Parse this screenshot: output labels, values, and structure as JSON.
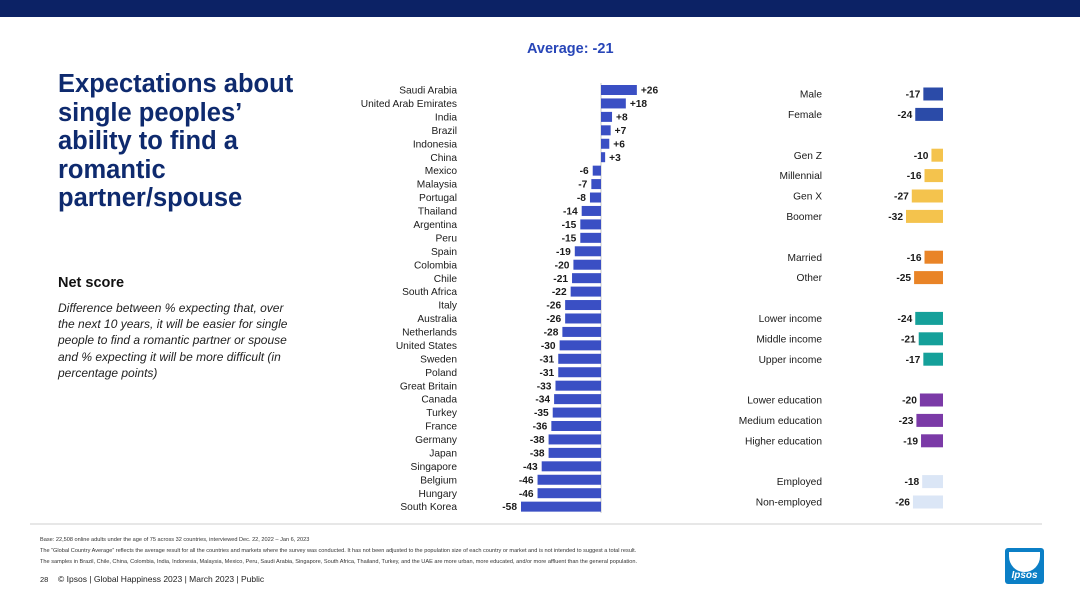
{
  "colors": {
    "top_bar": "#0c2265",
    "title": "#0e2a6e",
    "average": "#2846b8",
    "country_bar": "#3a4fc4",
    "gender": "#2b4ba8",
    "generation": "#f4c34d",
    "marital": "#e98427",
    "income": "#15a09a",
    "education": "#7b3aa7",
    "employment": "#dbe6f6",
    "logo": "#0b7fc6"
  },
  "title": "Expectations about single peoples’ ability to find a romantic partner/spouse",
  "net_score": {
    "heading": "Net score",
    "description": "Difference between % expecting that, over the next 10 years, it will be easier for single people to find a romantic partner or spouse and % expecting it will be more difficult (in percentage points)"
  },
  "chart_data": [
    {
      "type": "bar",
      "orientation": "horizontal",
      "title": "Average: -21",
      "average": -21,
      "xlim": [
        -58,
        26
      ],
      "categories": [
        "Saudi Arabia",
        "United Arab Emirates",
        "India",
        "Brazil",
        "Indonesia",
        "China",
        "Mexico",
        "Malaysia",
        "Portugal",
        "Thailand",
        "Argentina",
        "Peru",
        "Spain",
        "Colombia",
        "Chile",
        "South Africa",
        "Italy",
        "Australia",
        "Netherlands",
        "United States",
        "Sweden",
        "Poland",
        "Great Britain",
        "Canada",
        "Turkey",
        "France",
        "Germany",
        "Japan",
        "Singapore",
        "Belgium",
        "Hungary",
        "South Korea"
      ],
      "values": [
        26,
        18,
        8,
        7,
        6,
        3,
        -6,
        -7,
        -8,
        -14,
        -15,
        -15,
        -19,
        -20,
        -21,
        -22,
        -26,
        -26,
        -28,
        -30,
        -31,
        -31,
        -33,
        -34,
        -35,
        -36,
        -38,
        -38,
        -43,
        -46,
        -46,
        -58
      ],
      "labels": [
        "+26",
        "+18",
        "+8",
        "+7",
        "+6",
        "+3",
        "-6",
        "-7",
        "-8",
        "-14",
        "-15",
        "-15",
        "-19",
        "-20",
        "-21",
        "-22",
        "-26",
        "-26",
        "-28",
        "-30",
        "-31",
        "-31",
        "-33",
        "-34",
        "-35",
        "-36",
        "-38",
        "-38",
        "-43",
        "-46",
        "-46",
        "-58"
      ]
    },
    {
      "type": "bar",
      "orientation": "horizontal",
      "groups": [
        {
          "name": "gender",
          "color": "#2b4ba8",
          "items": [
            {
              "label": "Male",
              "value": -17,
              "text": "-17"
            },
            {
              "label": "Female",
              "value": -24,
              "text": "-24"
            }
          ]
        },
        {
          "name": "generation",
          "color": "#f4c34d",
          "items": [
            {
              "label": "Gen Z",
              "value": -10,
              "text": "-10"
            },
            {
              "label": "Millennial",
              "value": -16,
              "text": "-16"
            },
            {
              "label": "Gen X",
              "value": -27,
              "text": "-27"
            },
            {
              "label": "Boomer",
              "value": -32,
              "text": "-32"
            }
          ]
        },
        {
          "name": "marital",
          "color": "#e98427",
          "items": [
            {
              "label": "Married",
              "value": -16,
              "text": "-16"
            },
            {
              "label": "Other",
              "value": -25,
              "text": "-25"
            }
          ]
        },
        {
          "name": "income",
          "color": "#15a09a",
          "items": [
            {
              "label": "Lower income",
              "value": -24,
              "text": "-24"
            },
            {
              "label": "Middle income",
              "value": -21,
              "text": "-21"
            },
            {
              "label": "Upper income",
              "value": -17,
              "text": "-17"
            }
          ]
        },
        {
          "name": "education",
          "color": "#7b3aa7",
          "items": [
            {
              "label": "Lower education",
              "value": -20,
              "text": "-20"
            },
            {
              "label": "Medium education",
              "value": -23,
              "text": "-23"
            },
            {
              "label": "Higher education",
              "value": -19,
              "text": "-19"
            }
          ]
        },
        {
          "name": "employment",
          "color": "#dbe6f6",
          "items": [
            {
              "label": "Employed",
              "value": -18,
              "text": "-18"
            },
            {
              "label": "Non-employed",
              "value": -26,
              "text": "-26"
            }
          ]
        }
      ]
    }
  ],
  "footnotes": {
    "base": "Base: 22,508 online adults under the age of 75 across 32 countries, interviewed Dec. 22, 2022 – Jan 6, 2023",
    "global_avg": "The “Global Country Average” reflects the average result for all the countries and markets where the survey was conducted. It has not been adjusted to the population size of each country or market and is not intended to suggest a total result.",
    "samples": "The samples in Brazil, Chile, China, Colombia, India, Indonesia, Malaysia, Mexico, Peru, Saudi Arabia, Singapore, South Africa, Thailand, Turkey, and the UAE are more urban, more educated, and/or more affluent than the general population."
  },
  "footer": {
    "page": "28",
    "text": "© Ipsos | Global Happiness 2023 | March 2023 | Public"
  },
  "logo_text": "Ipsos"
}
